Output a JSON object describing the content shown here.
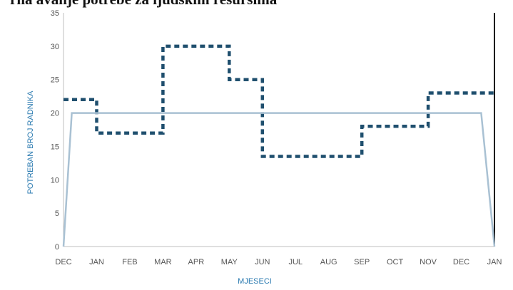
{
  "chart_data": {
    "type": "line",
    "title": "rna  avanje potrebe za ljudskim resursima",
    "xlabel": "MJESECI",
    "ylabel": "POTREBAN BROJ RADNIKA",
    "ylim": [
      0,
      35
    ],
    "yticks": [
      0,
      5,
      10,
      15,
      20,
      25,
      30,
      35
    ],
    "categories": [
      "DEC",
      "JAN",
      "FEB",
      "MAR",
      "APR",
      "MAY",
      "JUN",
      "JUL",
      "AUG",
      "SEP",
      "OCT",
      "NOV",
      "DEC",
      "JAN"
    ],
    "grid": false,
    "series": [
      {
        "style": "step-dashed",
        "color": "#1f4f6e",
        "x": [
          0,
          1,
          1,
          3,
          3,
          5,
          5,
          6,
          6,
          9,
          9,
          11,
          11,
          13
        ],
        "y": [
          22,
          22,
          17,
          17,
          30,
          30,
          25,
          25,
          13.5,
          13.5,
          18,
          18,
          23,
          23
        ]
      },
      {
        "style": "solid",
        "color": "#a9c1d3",
        "x": [
          0,
          0.25,
          12.6,
          13
        ],
        "y": [
          0,
          20,
          20,
          0
        ]
      }
    ]
  }
}
